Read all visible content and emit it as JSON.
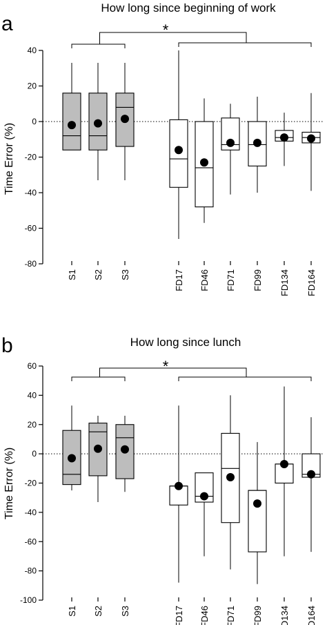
{
  "chart_data": [
    {
      "type": "box",
      "panel": "a",
      "title": "How long since beginning of work",
      "ylabel": "Time Error (%)",
      "ylim": [
        -80,
        40
      ],
      "yticks": [
        40,
        20,
        0,
        -20,
        -40,
        -60,
        -80
      ],
      "reference_line": 0,
      "significance": "*",
      "groups": [
        {
          "category": "S1",
          "fill": "#bdbdbd",
          "whisker_low": -16,
          "q1": -16,
          "median": -8,
          "q3": 16,
          "whisker_high": 33,
          "mean": -2
        },
        {
          "category": "S2",
          "fill": "#bdbdbd",
          "whisker_low": -33,
          "q1": -16,
          "median": -8,
          "q3": 16,
          "whisker_high": 33,
          "mean": -1
        },
        {
          "category": "S3",
          "fill": "#bdbdbd",
          "whisker_low": -33,
          "q1": -14,
          "median": 8,
          "q3": 16,
          "whisker_high": 33,
          "mean": 1.5
        },
        {
          "category": "FD17",
          "fill": "#ffffff",
          "whisker_low": -66,
          "q1": -37,
          "median": -21,
          "q3": 1,
          "whisker_high": 40,
          "mean": -16
        },
        {
          "category": "FD46",
          "fill": "#ffffff",
          "whisker_low": -57,
          "q1": -48,
          "median": -26,
          "q3": 0,
          "whisker_high": 13,
          "mean": -23
        },
        {
          "category": "FD71",
          "fill": "#ffffff",
          "whisker_low": -41,
          "q1": -16,
          "median": -13,
          "q3": 2,
          "whisker_high": 10,
          "mean": -12
        },
        {
          "category": "FD99",
          "fill": "#ffffff",
          "whisker_low": -40,
          "q1": -25,
          "median": -13,
          "q3": 0,
          "whisker_high": 14,
          "mean": -12
        },
        {
          "category": "FD134",
          "fill": "#ffffff",
          "whisker_low": -25,
          "q1": -11,
          "median": -9,
          "q3": -5,
          "whisker_high": 5,
          "mean": -9
        },
        {
          "category": "FD164",
          "fill": "#ffffff",
          "whisker_low": -39,
          "q1": -12,
          "median": -9,
          "q3": -6,
          "whisker_high": 16,
          "mean": -9.5
        }
      ]
    },
    {
      "type": "box",
      "panel": "b",
      "title": "How long since lunch",
      "ylabel": "Time Error (%)",
      "ylim": [
        -100,
        60
      ],
      "yticks": [
        60,
        40,
        20,
        0,
        -20,
        -40,
        -60,
        -80,
        -100
      ],
      "reference_line": 0,
      "significance": "*",
      "groups": [
        {
          "category": "S1",
          "fill": "#bdbdbd",
          "whisker_low": -25,
          "q1": -21,
          "median": -14,
          "q3": 16,
          "whisker_high": 33,
          "mean": -3
        },
        {
          "category": "S2",
          "fill": "#bdbdbd",
          "whisker_low": -33,
          "q1": -15,
          "median": 15,
          "q3": 21,
          "whisker_high": 26,
          "mean": 3.5
        },
        {
          "category": "S3",
          "fill": "#bdbdbd",
          "whisker_low": -26,
          "q1": -17,
          "median": 11,
          "q3": 20,
          "whisker_high": 26,
          "mean": 3
        },
        {
          "category": "FD17",
          "fill": "#ffffff",
          "whisker_low": -88,
          "q1": -35,
          "median": -22,
          "q3": -22,
          "whisker_high": 33,
          "mean": -22
        },
        {
          "category": "FD46",
          "fill": "#ffffff",
          "whisker_low": -70,
          "q1": -33,
          "median": -29,
          "q3": -13,
          "whisker_high": -13,
          "mean": -29
        },
        {
          "category": "FD71",
          "fill": "#ffffff",
          "whisker_low": -79,
          "q1": -47,
          "median": -10,
          "q3": 14,
          "whisker_high": 40,
          "mean": -16
        },
        {
          "category": "FD99",
          "fill": "#ffffff",
          "whisker_low": -89,
          "q1": -67,
          "median": -25,
          "q3": -25,
          "whisker_high": 8,
          "mean": -34
        },
        {
          "category": "FD134",
          "fill": "#ffffff",
          "whisker_low": -70,
          "q1": -20,
          "median": -7,
          "q3": -7,
          "whisker_high": 46,
          "mean": -7
        },
        {
          "category": "FD164",
          "fill": "#ffffff",
          "whisker_low": -67,
          "q1": -16,
          "median": -14,
          "q3": 0,
          "whisker_high": 25,
          "mean": -14
        }
      ]
    }
  ]
}
